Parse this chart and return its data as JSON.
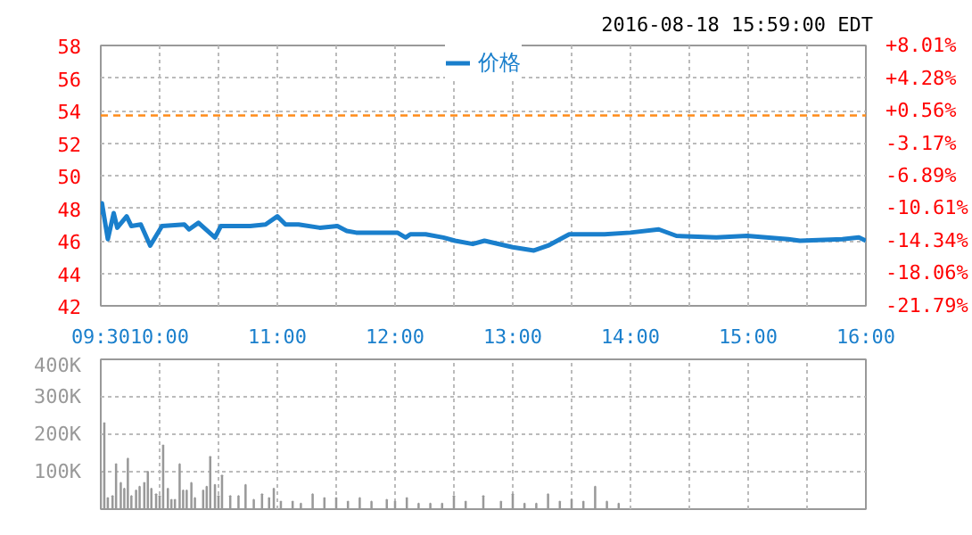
{
  "chart_data": [
    {
      "type": "line",
      "annotations": [
        "2016-08-18 15:59:00 EDT"
      ],
      "legend": "top",
      "grid": true,
      "line_style": "solid",
      "marker": "none",
      "xlim": [
        9.5,
        16
      ],
      "xticks": [
        {
          "value": 9.5,
          "label": "09:30"
        },
        {
          "value": 10,
          "label": "10:00"
        },
        {
          "value": 10.5,
          "label": null
        },
        {
          "value": 11,
          "label": "11:00"
        },
        {
          "value": 11.5,
          "label": null
        },
        {
          "value": 12,
          "label": "12:00"
        },
        {
          "value": 12.5,
          "label": null
        },
        {
          "value": 13,
          "label": "13:00"
        },
        {
          "value": 13.5,
          "label": null
        },
        {
          "value": 14,
          "label": "14:00"
        },
        {
          "value": 14.5,
          "label": null
        },
        {
          "value": 15,
          "label": "15:00"
        },
        {
          "value": 15.5,
          "label": null
        },
        {
          "value": 16,
          "label": "16:00"
        }
      ],
      "ylim": [
        42,
        58
      ],
      "yticks": [
        42,
        44,
        46,
        48,
        50,
        52,
        54,
        56,
        58
      ],
      "y2lim": [
        -21.79,
        8.01
      ],
      "y2ticks": [
        {
          "value": -21.79,
          "label": "-21.79%"
        },
        {
          "value": -18.06,
          "label": "-18.06%"
        },
        {
          "value": -14.34,
          "label": "-14.34%"
        },
        {
          "value": -10.61,
          "label": "-10.61%"
        },
        {
          "value": -6.89,
          "label": "-6.89%"
        },
        {
          "value": -3.17,
          "label": "-3.17%"
        },
        {
          "value": 0.56,
          "label": "+0.56%"
        },
        {
          "value": 4.28,
          "label": "+4.28%"
        },
        {
          "value": 8.01,
          "label": "+8.01%"
        }
      ],
      "ref_lines": [
        {
          "axis": "y",
          "value": 53.7,
          "color": "#ff8c1a",
          "line_style": "dashed"
        }
      ],
      "x": [
        9.5,
        9.51,
        9.56,
        9.61,
        9.64,
        9.72,
        9.76,
        9.84,
        9.92,
        10.02,
        10.21,
        10.25,
        10.33,
        10.47,
        10.52,
        10.77,
        10.9,
        11.0,
        11.07,
        11.18,
        11.36,
        11.51,
        11.59,
        11.67,
        11.91,
        12.02,
        12.09,
        12.13,
        12.26,
        12.41,
        12.51,
        12.66,
        12.76,
        13.0,
        13.18,
        13.3,
        13.48,
        13.78,
        14.0,
        14.24,
        14.39,
        14.73,
        14.99,
        15.34,
        15.44,
        15.8,
        15.94,
        16.0
      ],
      "series": [
        {
          "name": "价格",
          "color": "#1a7fcc",
          "values": [
            47.6,
            48.3,
            46.1,
            47.7,
            46.8,
            47.5,
            46.9,
            47.0,
            45.7,
            46.9,
            47.0,
            46.7,
            47.1,
            46.2,
            46.9,
            46.9,
            47.0,
            47.5,
            47.0,
            47.0,
            46.8,
            46.9,
            46.6,
            46.5,
            46.5,
            46.5,
            46.2,
            46.4,
            46.4,
            46.2,
            46.0,
            45.8,
            46.0,
            45.6,
            45.4,
            45.7,
            46.4,
            46.4,
            46.5,
            46.7,
            46.3,
            46.2,
            46.3,
            46.1,
            46.0,
            46.1,
            46.2,
            46.0
          ]
        }
      ]
    },
    {
      "type": "bar",
      "grid": true,
      "color": "#999999",
      "tick_labels": "y",
      "xlim": [
        9.5,
        16
      ],
      "xticks": [
        {
          "value": 10,
          "label": null
        },
        {
          "value": 10.5,
          "label": null
        },
        {
          "value": 11,
          "label": null
        },
        {
          "value": 11.5,
          "label": null
        },
        {
          "value": 12,
          "label": null
        },
        {
          "value": 12.5,
          "label": null
        },
        {
          "value": 13,
          "label": null
        },
        {
          "value": 13.5,
          "label": null
        },
        {
          "value": 14,
          "label": null
        },
        {
          "value": 14.5,
          "label": null
        },
        {
          "value": 15,
          "label": null
        },
        {
          "value": 15.5,
          "label": null
        }
      ],
      "ylim": [
        0,
        400000
      ],
      "yticks": [
        {
          "value": 100000,
          "label": "100K"
        },
        {
          "value": 200000,
          "label": "200K"
        },
        {
          "value": 300000,
          "label": "300K"
        },
        {
          "value": 400000,
          "label": "400K"
        }
      ],
      "x": [
        9.5,
        9.53,
        9.56,
        9.6,
        9.63,
        9.67,
        9.7,
        9.73,
        9.76,
        9.8,
        9.83,
        9.87,
        9.9,
        9.93,
        9.97,
        10.0,
        10.03,
        10.07,
        10.1,
        10.13,
        10.17,
        10.2,
        10.23,
        10.27,
        10.3,
        10.37,
        10.4,
        10.43,
        10.47,
        10.5,
        10.53,
        10.6,
        10.67,
        10.73,
        10.8,
        10.87,
        10.93,
        10.97,
        11.03,
        11.13,
        11.2,
        11.3,
        11.4,
        11.5,
        11.6,
        11.7,
        11.8,
        11.93,
        12.0,
        12.1,
        12.2,
        12.3,
        12.4,
        12.5,
        12.6,
        12.75,
        12.9,
        13.0,
        13.1,
        13.2,
        13.3,
        13.4,
        13.5,
        13.6,
        13.7,
        13.8,
        13.9
      ],
      "values": [
        100000,
        230000,
        30000,
        35000,
        120000,
        70000,
        55000,
        135000,
        35000,
        50000,
        60000,
        70000,
        100000,
        55000,
        40000,
        35000,
        170000,
        55000,
        25000,
        25000,
        120000,
        50000,
        50000,
        70000,
        30000,
        50000,
        60000,
        140000,
        65000,
        35000,
        90000,
        35000,
        35000,
        65000,
        25000,
        40000,
        30000,
        55000,
        20000,
        20000,
        15000,
        40000,
        30000,
        30000,
        20000,
        30000,
        20000,
        25000,
        20000,
        30000,
        15000,
        15000,
        15000,
        35000,
        20000,
        35000,
        20000,
        40000,
        15000,
        15000,
        40000,
        20000,
        25000,
        20000,
        60000,
        20000,
        15000
      ]
    }
  ]
}
